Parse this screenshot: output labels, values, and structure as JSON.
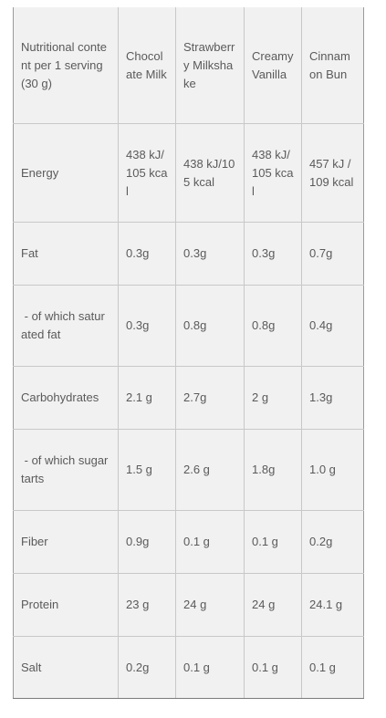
{
  "table": {
    "header": {
      "label": "Nutritional content per 1 serving (30 g)",
      "flavors": [
        "Chocolate Milk",
        "Strawberry Milkshake",
        "Creamy Vanilla",
        "Cinnamon Bun"
      ]
    },
    "rows": [
      {
        "label": "Energy",
        "values": [
          "438 kJ/105 kcal",
          "438 kJ/105 kcal",
          "438 kJ/105 kcal",
          "457 kJ / 109 kcal"
        ]
      },
      {
        "label": "Fat",
        "values": [
          "0.3g",
          "0.3g",
          "0.3g",
          "0.7g"
        ]
      },
      {
        "label": " - of which saturated fat",
        "values": [
          "0.3g",
          "0.8g",
          "0.8g",
          "0.4g"
        ]
      },
      {
        "label": "Carbohydrates",
        "values": [
          "2.1 g",
          "2.7g",
          "2 g",
          "1.3g"
        ]
      },
      {
        "label": " - of which sugar tarts",
        "values": [
          "1.5 g",
          "2.6 g",
          "1.8g",
          "1.0 g"
        ]
      },
      {
        "label": "Fiber",
        "values": [
          "0.9g",
          "0.1 g",
          "0.1 g",
          "0.2g"
        ]
      },
      {
        "label": "Protein",
        "values": [
          "23 g",
          "24 g",
          "24 g",
          "24.1 g"
        ]
      },
      {
        "label": "Salt",
        "values": [
          "0.2g",
          "0.1 g",
          "0.1 g",
          "0.1 g"
        ]
      }
    ]
  }
}
